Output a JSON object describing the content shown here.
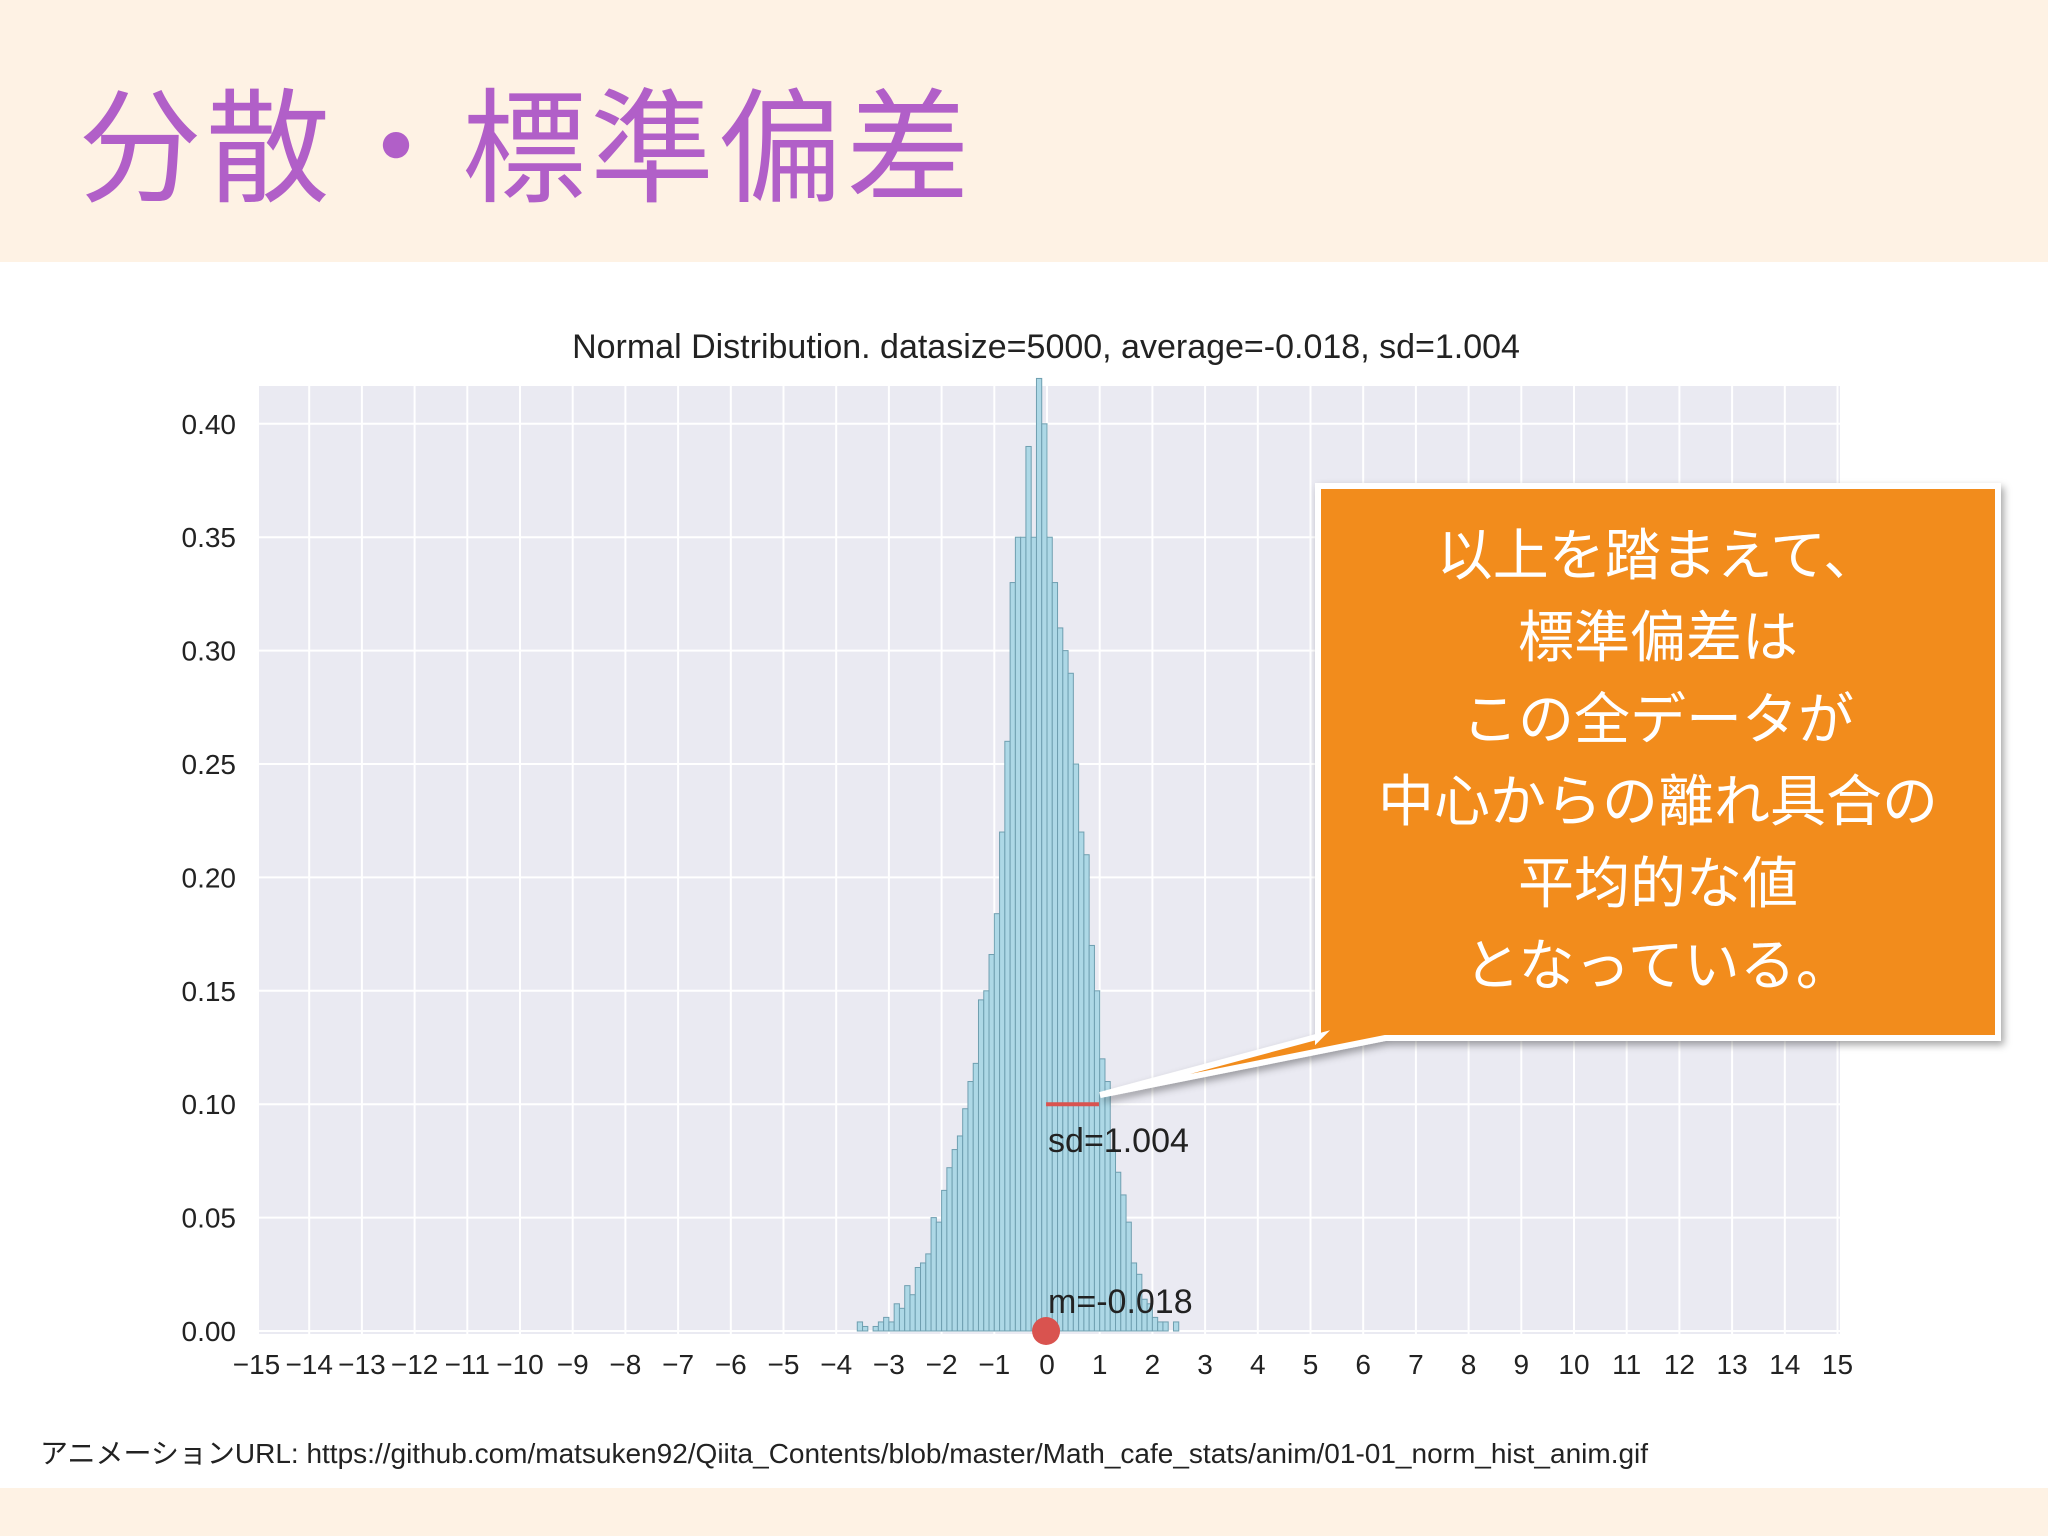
{
  "slide": {
    "title": "分散・標準偏差",
    "source_url": "アニメーションURL: https://github.com/matsuken92/Qiita_Contents/blob/master/Math_cafe_stats/anim/01-01_norm_hist_anim.gif"
  },
  "callout": {
    "text": "以上を踏まえて、\n標準偏差は\nこの全データが\n中心からの離れ具合の\n平均的な値\nとなっている。",
    "fill_color": "#f28c1c",
    "border_color": "#ffffff"
  },
  "colors": {
    "header_bg": "#fef2e4",
    "title_color": "#b15fc8",
    "plot_bg": "#eaeaf2",
    "bar_fill": "#add8e6",
    "bar_stroke": "#6f9fb0",
    "marker_red": "#d9534f"
  },
  "chart_data": {
    "type": "bar",
    "title": "Normal Distribution. datasize=5000, average=-0.018, sd=1.004",
    "xlabel": "",
    "ylabel": "",
    "xlim": [
      -15,
      15
    ],
    "ylim": [
      0,
      0.42
    ],
    "grid": true,
    "x_ticks": [
      -15,
      -14,
      -13,
      -12,
      -11,
      -10,
      -9,
      -8,
      -7,
      -6,
      -5,
      -4,
      -3,
      -2,
      -1,
      0,
      1,
      2,
      3,
      4,
      5,
      6,
      7,
      8,
      9,
      10,
      11,
      12,
      13,
      14,
      15
    ],
    "y_ticks": [
      0.0,
      0.05,
      0.1,
      0.15,
      0.2,
      0.25,
      0.3,
      0.35,
      0.4
    ],
    "bin_width": 0.1,
    "bins_start": -3.6,
    "values": [
      0.004,
      0.002,
      0.0,
      0.002,
      0.004,
      0.006,
      0.004,
      0.012,
      0.01,
      0.02,
      0.016,
      0.028,
      0.03,
      0.034,
      0.05,
      0.048,
      0.062,
      0.072,
      0.08,
      0.086,
      0.098,
      0.11,
      0.118,
      0.146,
      0.15,
      0.166,
      0.184,
      0.22,
      0.26,
      0.33,
      0.35,
      0.35,
      0.39,
      0.35,
      0.42,
      0.4,
      0.35,
      0.33,
      0.31,
      0.3,
      0.29,
      0.25,
      0.22,
      0.21,
      0.17,
      0.15,
      0.12,
      0.11,
      0.08,
      0.07,
      0.06,
      0.048,
      0.03,
      0.025,
      0.014,
      0.012,
      0.006,
      0.004,
      0.004,
      0.0,
      0.004
    ],
    "annotations": {
      "mean_label": "m=-0.018",
      "mean_value": -0.018,
      "sd_label": "sd=1.004",
      "sd_value": 1.004,
      "sd_line_y": 0.1
    }
  }
}
